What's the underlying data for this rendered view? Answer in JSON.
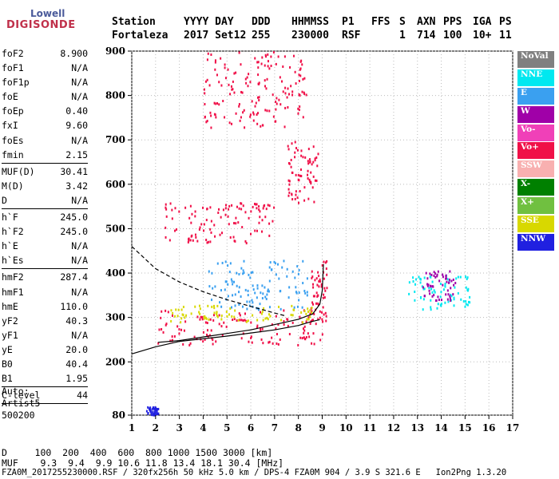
{
  "logo": {
    "line1": "Lowell",
    "line2": "DIGISONDE"
  },
  "header": {
    "labels": [
      "Station",
      "YYYY DAY",
      "DDD",
      "HHMMSS",
      "P1",
      "FFS",
      "S",
      "AXN",
      "PPS",
      "IGA",
      "PS"
    ],
    "values": [
      "Fortaleza",
      "2017 Set12",
      "255",
      "230000",
      "RSF",
      "1",
      "714",
      "100",
      "10+",
      "11"
    ]
  },
  "params": [
    {
      "name": "foF2",
      "value": "8.900"
    },
    {
      "name": "foF1",
      "value": "N/A"
    },
    {
      "name": "foF1p",
      "value": "N/A"
    },
    {
      "name": "foE",
      "value": "N/A"
    },
    {
      "name": "foEp",
      "value": "0.40"
    },
    {
      "name": "fxI",
      "value": "9.60"
    },
    {
      "name": "foEs",
      "value": "N/A"
    },
    {
      "name": "fmin",
      "value": "2.15"
    },
    {
      "sep": true
    },
    {
      "name": "MUF(D)",
      "value": "30.41"
    },
    {
      "name": "M(D)",
      "value": "3.42"
    },
    {
      "name": "D",
      "value": "N/A"
    },
    {
      "sep": true
    },
    {
      "name": "h`F",
      "value": "245.0"
    },
    {
      "name": "h`F2",
      "value": "245.0"
    },
    {
      "name": "h`E",
      "value": "N/A"
    },
    {
      "name": "h`Es",
      "value": "N/A"
    },
    {
      "sep": true
    },
    {
      "name": "hmF2",
      "value": "287.4"
    },
    {
      "name": "hmF1",
      "value": "N/A"
    },
    {
      "name": "hmE",
      "value": "110.0"
    },
    {
      "name": "yF2",
      "value": "40.3"
    },
    {
      "name": "yF1",
      "value": "N/A"
    },
    {
      "name": "yE",
      "value": "20.0"
    },
    {
      "name": "B0",
      "value": "40.4"
    },
    {
      "name": "B1",
      "value": "1.95"
    },
    {
      "sep": true
    },
    {
      "name": "C-level",
      "value": "44"
    },
    {
      "sep": true
    }
  ],
  "auto": [
    "Auto:",
    "Artist5",
    "500200"
  ],
  "legend": [
    {
      "label": "NoVal",
      "color": "#808080"
    },
    {
      "label": "NNE",
      "color": "#00e8f0"
    },
    {
      "label": "E",
      "color": "#3aa0f0"
    },
    {
      "label": "W",
      "color": "#a000a8"
    },
    {
      "label": "Vo-",
      "color": "#f040b8"
    },
    {
      "label": "Vo+",
      "color": "#f01048"
    },
    {
      "label": "SSW",
      "color": "#f8b0b0"
    },
    {
      "label": "X-",
      "color": "#008000"
    },
    {
      "label": "X+",
      "color": "#70c040"
    },
    {
      "label": "SSE",
      "color": "#d8d800"
    },
    {
      "label": "NNW",
      "color": "#2020e0"
    }
  ],
  "footer": {
    "d_line": "D     100  200  400  600  800 1000 1500 3000 [km]",
    "muf_line": "MUF    9.3  9.4  9.9 10.6 11.8 13.4 18.1 30.4 [MHz]",
    "file_line": "FZA0M_2017255230000.RSF / 320fx256h 50 kHz 5.0 km / DPS-4 FZA0M 904 / 3.9 S 321.6 E   Ion2Png 1.3.20"
  },
  "chart_data": {
    "type": "scatter",
    "xlabel": "",
    "ylabel": "",
    "xlim": [
      1,
      17
    ],
    "ylim": [
      80,
      900
    ],
    "x_ticks": [
      1,
      2,
      3,
      4,
      5,
      6,
      7,
      8,
      9,
      10,
      11,
      12,
      13,
      14,
      15,
      16,
      17
    ],
    "y_ticks": [
      80,
      200,
      300,
      400,
      500,
      600,
      700,
      800,
      900
    ],
    "grid": true,
    "traces": [
      {
        "name": "profile",
        "style": "solid",
        "points": [
          [
            1.0,
            218
          ],
          [
            2.0,
            234
          ],
          [
            3.0,
            246
          ],
          [
            4.0,
            252
          ],
          [
            5.0,
            258
          ],
          [
            6.0,
            265
          ],
          [
            7.0,
            272
          ],
          [
            8.0,
            282
          ],
          [
            8.5,
            290
          ],
          [
            8.9,
            295
          ]
        ]
      },
      {
        "name": "trace",
        "style": "solid",
        "points": [
          [
            2.1,
            244
          ],
          [
            3.0,
            248
          ],
          [
            4.0,
            256
          ],
          [
            5.0,
            264
          ],
          [
            6.0,
            272
          ],
          [
            7.0,
            284
          ],
          [
            8.0,
            296
          ],
          [
            8.6,
            308
          ],
          [
            8.9,
            330
          ],
          [
            9.0,
            360
          ],
          [
            9.05,
            420
          ]
        ]
      },
      {
        "name": "dashed",
        "style": "dashed",
        "points": [
          [
            1.0,
            460
          ],
          [
            1.5,
            435
          ],
          [
            2.0,
            410
          ],
          [
            3.0,
            380
          ],
          [
            4.0,
            358
          ],
          [
            5.0,
            340
          ],
          [
            6.0,
            325
          ],
          [
            7.0,
            310
          ],
          [
            7.5,
            303
          ]
        ]
      }
    ],
    "echo_groups": [
      {
        "class": "Vo+",
        "color": "#f01048",
        "x": [
          2.0,
          9.0
        ],
        "y": [
          240,
          320
        ]
      },
      {
        "class": "Vo+",
        "color": "#f01048",
        "x": [
          8.5,
          9.2
        ],
        "y": [
          290,
          430
        ]
      },
      {
        "class": "SSE",
        "color": "#d8d800",
        "x": [
          2.6,
          8.6
        ],
        "y": [
          290,
          330
        ]
      },
      {
        "class": "NNE",
        "color": "#00e8f0",
        "x": [
          12.6,
          15.2
        ],
        "y": [
          320,
          400
        ]
      },
      {
        "class": "W",
        "color": "#a000a8",
        "x": [
          13.2,
          14.6
        ],
        "y": [
          340,
          410
        ]
      },
      {
        "class": "E",
        "color": "#3aa0f0",
        "x": [
          4.2,
          8.4
        ],
        "y": [
          320,
          430
        ]
      },
      {
        "class": "Vo+",
        "color": "#f01048",
        "x": [
          2.3,
          7.0
        ],
        "y": [
          470,
          560
        ]
      },
      {
        "class": "Vo+",
        "color": "#f01048",
        "x": [
          7.5,
          8.8
        ],
        "y": [
          560,
          700
        ]
      },
      {
        "class": "Vo+",
        "color": "#f01048",
        "x": [
          4.0,
          8.3
        ],
        "y": [
          730,
          900
        ]
      },
      {
        "class": "NNW",
        "color": "#2020e0",
        "x": [
          1.6,
          2.1
        ],
        "y": [
          82,
          100
        ]
      }
    ]
  }
}
